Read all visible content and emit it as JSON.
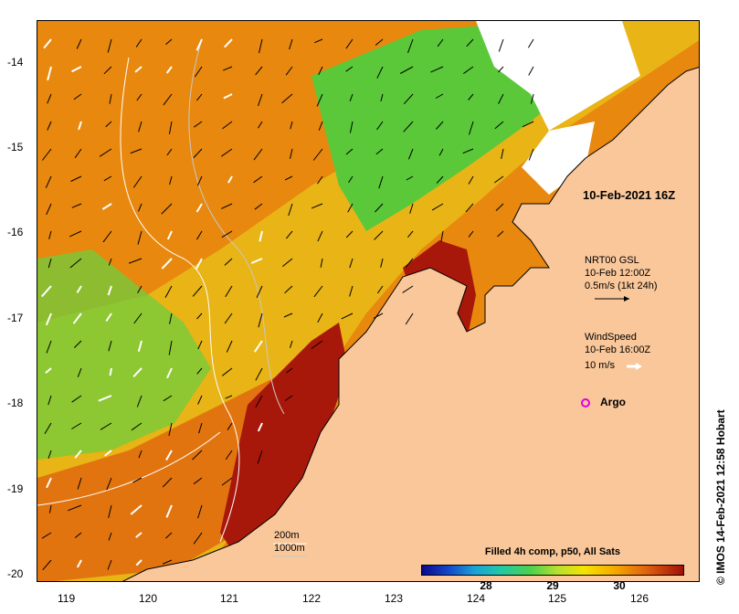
{
  "map": {
    "lat_labels": [
      "-14",
      "-15",
      "-16",
      "-17",
      "-18",
      "-19",
      "-20"
    ],
    "lon_labels": [
      "119",
      "120",
      "121",
      "122",
      "123",
      "124",
      "125",
      "126"
    ],
    "timestamp_label": "10-Feb-2021 16Z",
    "current_legend": {
      "title": "NRT00 GSL",
      "time": "10-Feb 12:00Z",
      "scale": "0.5m/s (1kt 24h)"
    },
    "wind_legend": {
      "title": "WindSpeed",
      "time": "10-Feb 16:00Z",
      "scale": "10 m/s"
    },
    "argo_label": "Argo",
    "isobath_labels": [
      "200m",
      "1000m"
    ],
    "colorbar": {
      "title": "Filled 4h comp, p50, All Sats",
      "ticks": [
        "28",
        "29",
        "30"
      ]
    },
    "credit": "© IMOS 14-Feb-2021 12:58 Hobart",
    "colors": {
      "land": "#f9c79a",
      "warm": "#e07a10",
      "hot": "#a01008",
      "cool": "#4fd24a",
      "cloud": "#ffffff",
      "argo": "#e000e0"
    }
  }
}
